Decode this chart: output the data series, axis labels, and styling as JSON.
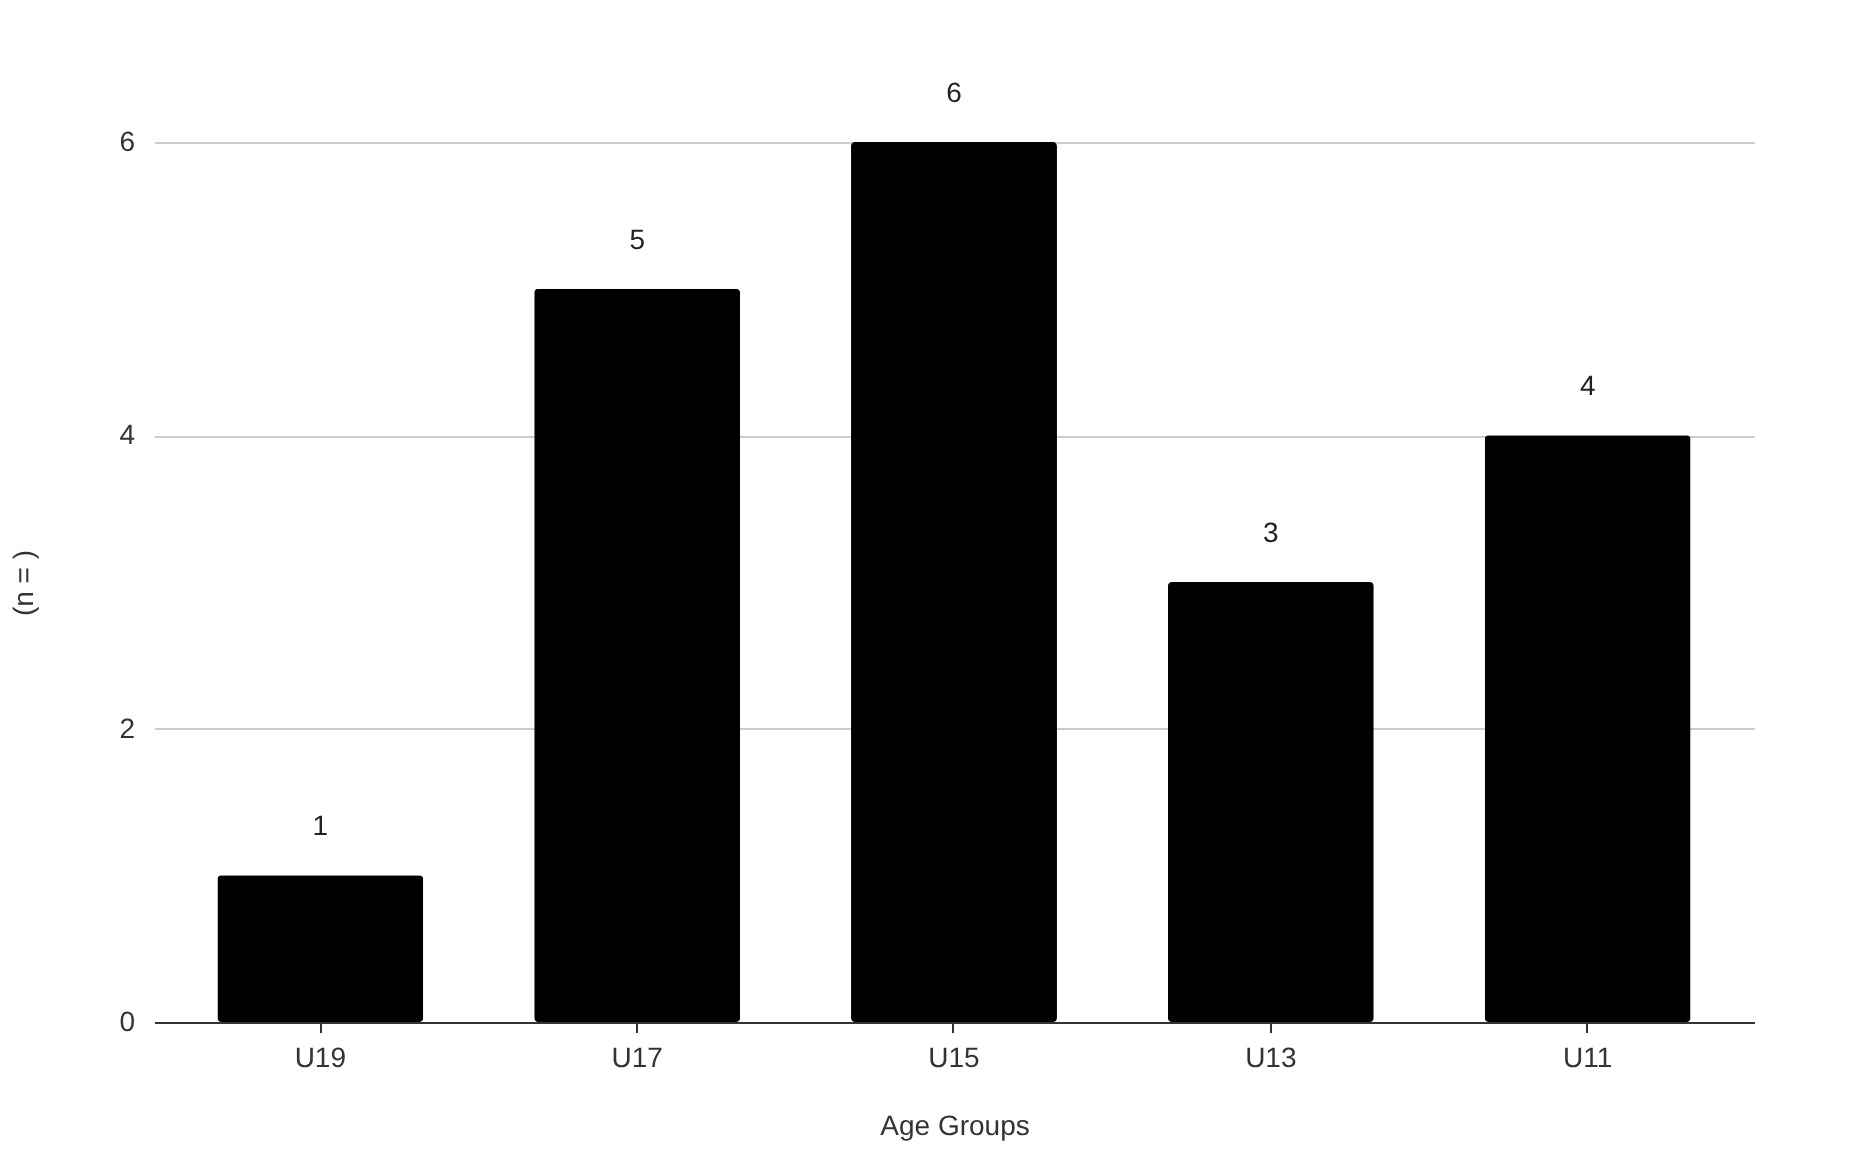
{
  "chart_data": {
    "type": "bar",
    "xlabel": "Age Groups",
    "ylabel": "(n = )",
    "categories": [
      "U19",
      "U17",
      "U15",
      "U13",
      "U11"
    ],
    "values": [
      1,
      5,
      6,
      3,
      4
    ],
    "color": "#000000",
    "ylim": [
      0,
      6
    ],
    "yticks": [
      0,
      2,
      4,
      6
    ],
    "grid": "y",
    "data_labels": true
  }
}
